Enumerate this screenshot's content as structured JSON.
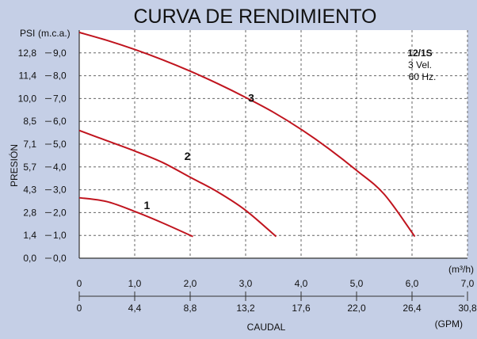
{
  "colors": {
    "background": "#c5cfe6",
    "plot_background": "#ffffff",
    "curve": "#c0141e",
    "grid": "#666666"
  },
  "chart_data": {
    "type": "line",
    "title": "CURVA DE RENDIMIENTO",
    "xlabel": "CAUDAL",
    "x_units_primary": "(m³/h)",
    "x_units_secondary": "(GPM)",
    "ylabel": "PRESIÓN",
    "y_units_left": "PSI",
    "y_units_right": "(m.c.a.)",
    "xlim": [
      0,
      7
    ],
    "ylim": [
      0,
      10
    ],
    "grid": true,
    "x_ticks_primary": [
      "0",
      "1,0",
      "2,0",
      "3,0",
      "4,0",
      "5,0",
      "6,0",
      "7,0"
    ],
    "x_ticks_secondary": [
      "0",
      "4,4",
      "8,8",
      "13,2",
      "17,6",
      "22,0",
      "26,4",
      "30,8"
    ],
    "y_ticks_mca": [
      "0,0",
      "1,0",
      "2,0",
      "3,0",
      "4,0",
      "5,0",
      "6,0",
      "7,0",
      "8,0",
      "9,0"
    ],
    "y_ticks_psi": [
      "0,0",
      "1,4",
      "2,8",
      "4,3",
      "5,7",
      "7,1",
      "8,5",
      "10,0",
      "11,4",
      "12,8"
    ],
    "annotation": {
      "model": "12/1S",
      "speeds": "3 Vel.",
      "frequency": "60 Hz."
    },
    "series": [
      {
        "name": "1",
        "x": [
          0.0,
          0.5,
          1.0,
          1.5,
          2.05
        ],
        "y": [
          2.65,
          2.48,
          2.05,
          1.55,
          0.95
        ]
      },
      {
        "name": "2",
        "x": [
          0.0,
          0.5,
          1.0,
          1.5,
          2.0,
          2.5,
          3.0,
          3.55
        ],
        "y": [
          5.6,
          5.15,
          4.7,
          4.2,
          3.55,
          2.9,
          2.1,
          0.95
        ]
      },
      {
        "name": "3",
        "x": [
          0.0,
          0.5,
          1.0,
          1.5,
          2.0,
          2.5,
          3.0,
          3.5,
          4.0,
          4.5,
          5.0,
          5.5,
          6.05
        ],
        "y": [
          9.9,
          9.55,
          9.15,
          8.7,
          8.2,
          7.65,
          7.05,
          6.4,
          5.65,
          4.8,
          3.85,
          2.8,
          0.95
        ]
      }
    ]
  }
}
